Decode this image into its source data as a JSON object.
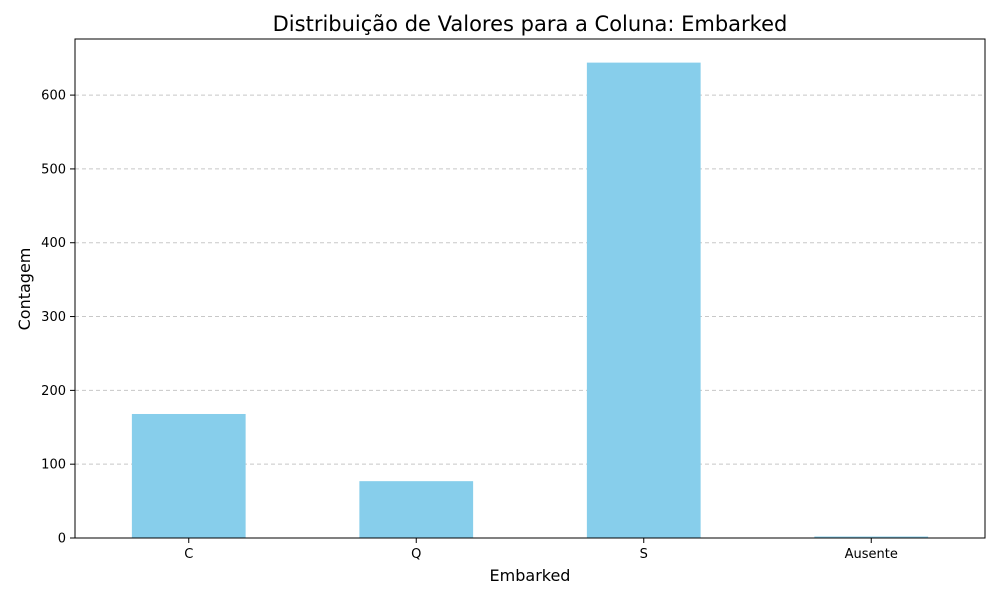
{
  "chart_data": {
    "type": "bar",
    "title": "Distribuição de Valores para a Coluna: Embarked",
    "xlabel": "Embarked",
    "ylabel": "Contagem",
    "categories": [
      "C",
      "Q",
      "S",
      "Ausente"
    ],
    "values": [
      168,
      77,
      644,
      2
    ],
    "ylim": [
      0,
      676
    ],
    "yticks": [
      0,
      100,
      200,
      300,
      400,
      500,
      600
    ],
    "grid": {
      "axis": "y",
      "style": "dashed"
    },
    "colors": {
      "bar": "#87ceeb",
      "grid": "#c8c8c8",
      "axis": "#000000"
    }
  }
}
